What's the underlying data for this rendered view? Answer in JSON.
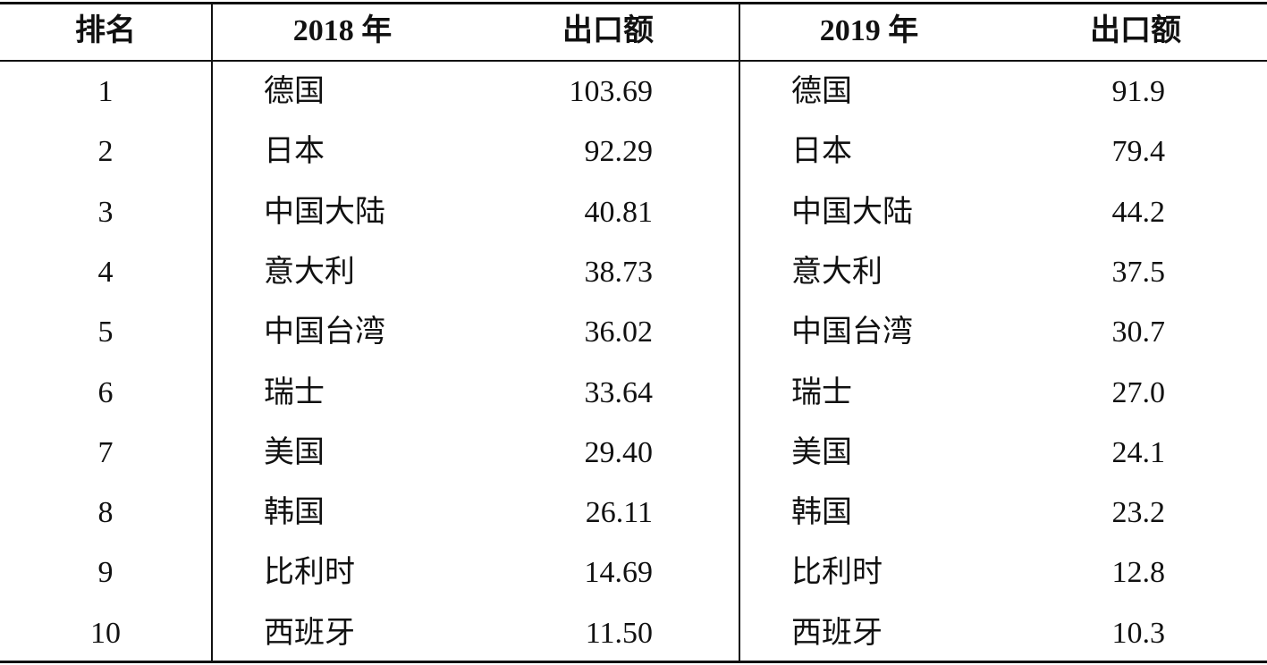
{
  "table": {
    "header": [
      "排名",
      "2018 年",
      "出口额",
      "2019 年",
      "出口额"
    ],
    "rows": [
      [
        "1",
        "德国",
        "103.69",
        "德国",
        "91.9"
      ],
      [
        "2",
        "日本",
        "92.29",
        "日本",
        "79.4"
      ],
      [
        "3",
        "中国大陆",
        "40.81",
        "中国大陆",
        "44.2"
      ],
      [
        "4",
        "意大利",
        "38.73",
        "意大利",
        "37.5"
      ],
      [
        "5",
        "中国台湾",
        "36.02",
        "中国台湾",
        "30.7"
      ],
      [
        "6",
        "瑞士",
        "33.64",
        "瑞士",
        "27.0"
      ],
      [
        "7",
        "美国",
        "29.40",
        "美国",
        "24.1"
      ],
      [
        "8",
        "韩国",
        "26.11",
        "韩国",
        "23.2"
      ],
      [
        "9",
        "比利时",
        "14.69",
        "比利时",
        "12.8"
      ],
      [
        "10",
        "西班牙",
        "11.50",
        "西班牙",
        "10.3"
      ]
    ]
  }
}
